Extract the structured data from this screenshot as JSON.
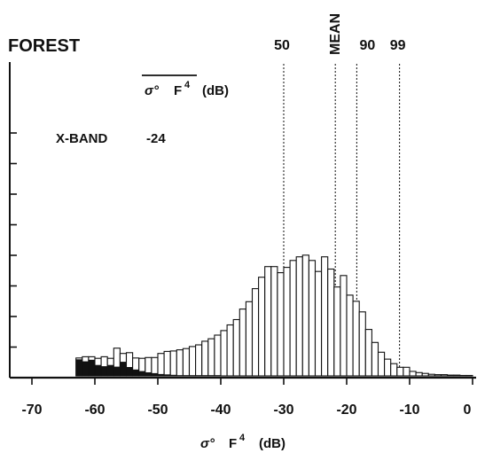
{
  "chart_data": {
    "type": "bar",
    "title": "FOREST",
    "xlabel_symbol": "σ°",
    "xlabel_term": "F",
    "xlabel_exponent": "4",
    "xlabel_unit": "(dB)",
    "inner_label_symbol": "σ°",
    "inner_label_term": "F",
    "inner_label_exponent": "4",
    "inner_label_unit": "(dB)",
    "band_label": "X-BAND",
    "band_value": "-24",
    "x_ticks": [
      "-70",
      "-60",
      "-50",
      "-40",
      "-30",
      "-20",
      "-10",
      "0"
    ],
    "xlim": [
      -71,
      0
    ],
    "percentile_labels": [
      "50",
      "MEAN",
      "90",
      "99"
    ],
    "percentile_values": [
      -30,
      -21.8,
      -18.4,
      -11.6
    ],
    "bin_width": 1,
    "bin_start": -63,
    "series": [
      {
        "values": [
          4.4,
          4.7,
          4.7,
          4.3,
          4.7,
          4.3,
          6.8,
          5.5,
          5.7,
          4.4,
          4.3,
          4.5,
          4.5,
          5.5,
          6.0,
          6.1,
          6.4,
          6.7,
          7.2,
          7.6,
          8.5,
          9.1,
          10.0,
          11.1,
          12.5,
          13.8,
          16.4,
          18.2,
          21.4,
          24.2,
          26.8,
          26.8,
          25.3,
          26.6,
          28.3,
          29.2,
          29.6,
          28.3,
          25.6,
          29.2,
          26.2,
          21.8,
          24.6,
          19.8,
          18.3,
          15.7,
          11.4,
          8.2,
          5.8,
          4.1,
          3.0,
          2.1,
          2.1,
          1.1,
          0.8,
          0.6,
          0.4,
          0.3,
          0.3,
          0.2,
          0.2,
          0.1,
          0.1
        ]
      },
      {
        "values": [
          4.0,
          3.5,
          3.9,
          2.6,
          2.3,
          2.6,
          2.2,
          3.4,
          2.1,
          1.5,
          1.1,
          0.8,
          0.6,
          0.4,
          0.3,
          0.2,
          0.1,
          0.1,
          0.1,
          0.1,
          0.1,
          0.1,
          0.1
        ]
      }
    ],
    "y_ticks_count": 8,
    "grid": false
  }
}
